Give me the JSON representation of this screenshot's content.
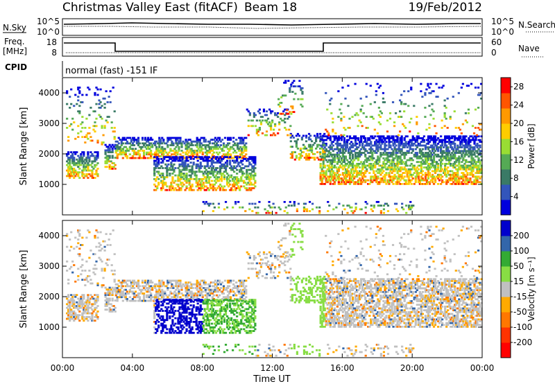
{
  "header": {
    "title": "Christmas Valley East (fitACF)",
    "beam": "Beam 18",
    "date": "19/Feb/2012"
  },
  "strips": {
    "nsky_label": "N.Sky",
    "nsky_ticks": [
      "10^5",
      "10^0"
    ],
    "nsearch_label": "N.Search",
    "nsearch_ticks": [
      "10^5",
      "10^0"
    ],
    "freq_label_1": "Freq.",
    "freq_label_2": "[MHz]",
    "freq_ticks": [
      "18",
      "8"
    ],
    "nave_label": "Nave",
    "nave_ticks": [
      "60",
      "0"
    ],
    "cpid_label": "CPID",
    "cpid_value": "normal (fast) -151 IF"
  },
  "colors": {
    "power_scale": [
      "#0000dd",
      "#3355bb",
      "#3a7a66",
      "#55aa55",
      "#99dd33",
      "#ffcc00",
      "#ff9900",
      "#ff5500",
      "#ff0000"
    ],
    "velocity_scale": [
      "#0000cc",
      "#3366aa",
      "#33aa33",
      "#88dd44",
      "#c0c0c0",
      "#ffaa00",
      "#ff7700",
      "#ff3300",
      "#ff0000"
    ]
  },
  "chart_data": [
    {
      "type": "heatmap",
      "name": "power",
      "ylabel": "Slant Range [km]",
      "ylim": [
        0,
        4500
      ],
      "yticks": [
        "1000",
        "2000",
        "3000",
        "4000"
      ],
      "xlim": [
        0,
        24
      ],
      "colorbar_label": "Power [dB]",
      "colorbar_ticks": [
        "4",
        "8",
        "12",
        "16",
        "20",
        "24",
        "28"
      ],
      "colorbar_range": [
        0,
        30
      ]
    },
    {
      "type": "heatmap",
      "name": "velocity",
      "ylabel": "Slant Range [km]",
      "ylim": [
        0,
        4500
      ],
      "yticks": [
        "1000",
        "2000",
        "3000",
        "4000"
      ],
      "xlim": [
        0,
        24
      ],
      "colorbar_label": "Velocity [m s⁻¹]",
      "colorbar_ticks": [
        "200",
        "100",
        "50",
        "15",
        "-15",
        "-50",
        "-100",
        "-200"
      ]
    }
  ],
  "xaxis": {
    "ticks": [
      "00:00",
      "04:00",
      "08:00",
      "12:00",
      "16:00",
      "20:00",
      "00:00"
    ],
    "label": "Time UT"
  }
}
